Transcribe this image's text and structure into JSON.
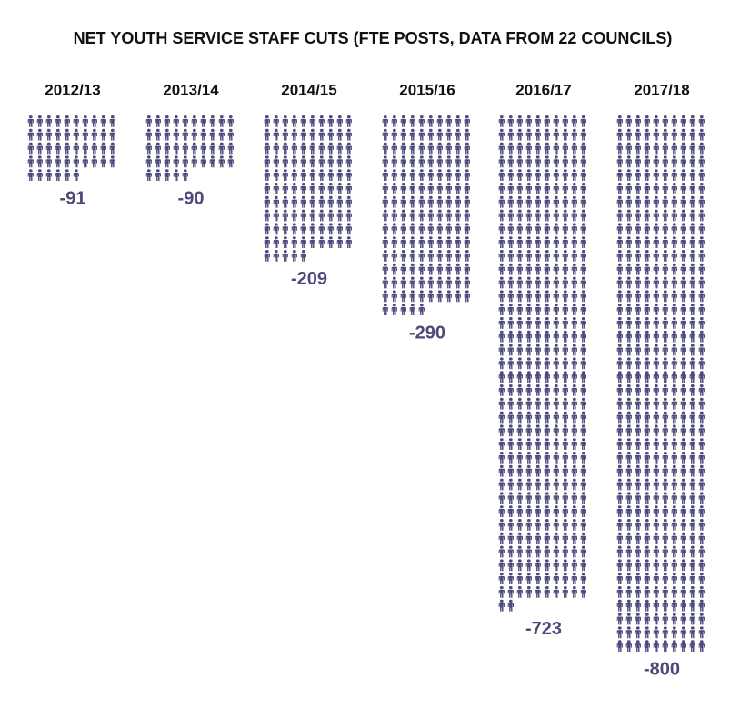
{
  "chart_data": {
    "type": "pictogram",
    "title": "NET YOUTH SERVICE STAFF CUTS (FTE POSTS, DATA FROM 22 COUNCILS)",
    "categories": [
      "2012/13",
      "2013/14",
      "2014/15",
      "2015/16",
      "2016/17",
      "2017/18"
    ],
    "values": [
      -91,
      -90,
      -209,
      -290,
      -723,
      -800
    ],
    "color": "#4c4a7b"
  }
}
